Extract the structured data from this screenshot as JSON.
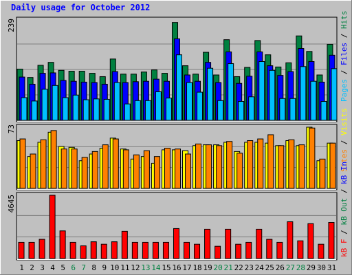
{
  "title": "Daily usage for October 2012",
  "colors": {
    "background": "#c0c0c0",
    "panel": "#c0c0c0",
    "title": "#0000ff",
    "hits": "#008040",
    "files": "#0000ff",
    "pages": "#00c0ff",
    "visits": "#ffff00",
    "sites": "#ff8000",
    "kbin": "#0000ff",
    "kbout": "#008040",
    "kbf": "#ff0000",
    "weekend": "#008040",
    "weekday": "#000000"
  },
  "chart_data": [
    {
      "type": "bar",
      "name": "hits-files-pages",
      "ymax_label": "239",
      "ylim": [
        0,
        239
      ],
      "legend": [
        "Pages",
        "Files",
        "Hits"
      ],
      "categories": [
        "1",
        "2",
        "3",
        "4",
        "5",
        "6",
        "7",
        "8",
        "9",
        "10",
        "11",
        "12",
        "13",
        "14",
        "15",
        "16",
        "17",
        "18",
        "19",
        "20",
        "21",
        "22",
        "23",
        "24",
        "25",
        "26",
        "27",
        "28",
        "29",
        "30",
        "31"
      ],
      "series": [
        {
          "name": "Hits",
          "values": [
            122,
            102,
            131,
            138,
            119,
            117,
            117,
            112,
            104,
            146,
            110,
            110,
            115,
            120,
            112,
            233,
            130,
            110,
            162,
            108,
            192,
            104,
            126,
            190,
            156,
            127,
            137,
            201,
            164,
            108,
            181
          ]
        },
        {
          "name": "Files",
          "values": [
            103,
            86,
            112,
            113,
            95,
            93,
            91,
            90,
            86,
            116,
            90,
            92,
            93,
            98,
            93,
            194,
            108,
            93,
            138,
            90,
            163,
            88,
            105,
            163,
            130,
            107,
            116,
            171,
            140,
            91,
            155
          ]
        },
        {
          "name": "Pages",
          "values": [
            54,
            46,
            74,
            83,
            54,
            60,
            49,
            51,
            50,
            90,
            39,
            47,
            47,
            68,
            53,
            156,
            90,
            67,
            124,
            47,
            135,
            45,
            56,
            140,
            119,
            52,
            52,
            128,
            93,
            45,
            123
          ]
        }
      ]
    },
    {
      "type": "bar",
      "name": "visits-sites",
      "ymax_label": "73",
      "ylim": [
        0,
        73
      ],
      "legend": [
        "Sites",
        "Visits"
      ],
      "categories": [
        "1",
        "2",
        "3",
        "4",
        "5",
        "6",
        "7",
        "8",
        "9",
        "10",
        "11",
        "12",
        "13",
        "14",
        "15",
        "16",
        "17",
        "18",
        "19",
        "20",
        "21",
        "22",
        "23",
        "24",
        "25",
        "26",
        "27",
        "28",
        "29",
        "30",
        "31"
      ],
      "series": [
        {
          "name": "Visits",
          "values": [
            57,
            38,
            55,
            67,
            50,
            49,
            33,
            41,
            48,
            60,
            47,
            35,
            38,
            30,
            46,
            46,
            45,
            51,
            52,
            52,
            55,
            44,
            55,
            55,
            54,
            51,
            57,
            51,
            73,
            33,
            54
          ]
        },
        {
          "name": "Sites",
          "values": [
            59,
            41,
            58,
            69,
            47,
            47,
            37,
            44,
            52,
            59,
            46,
            40,
            45,
            38,
            48,
            47,
            41,
            53,
            52,
            51,
            56,
            42,
            57,
            59,
            64,
            51,
            58,
            52,
            72,
            35,
            54
          ]
        }
      ]
    },
    {
      "type": "bar",
      "name": "kbytes",
      "ymax_label": "4645",
      "ylim": [
        0,
        4645
      ],
      "legend": [
        "kB F",
        "kB Out",
        "kB In"
      ],
      "categories": [
        "1",
        "2",
        "3",
        "4",
        "5",
        "6",
        "7",
        "8",
        "9",
        "10",
        "11",
        "12",
        "13",
        "14",
        "15",
        "16",
        "17",
        "18",
        "19",
        "20",
        "21",
        "22",
        "23",
        "24",
        "25",
        "26",
        "27",
        "28",
        "29",
        "30",
        "31"
      ],
      "series": [
        {
          "name": "kB F",
          "values": [
            1190,
            1190,
            1410,
            4645,
            2030,
            1190,
            930,
            1230,
            1050,
            1230,
            2000,
            1190,
            1190,
            1190,
            1190,
            2200,
            1190,
            1050,
            2150,
            900,
            2150,
            1050,
            1190,
            2150,
            1410,
            1190,
            2700,
            1300,
            2560,
            1050,
            2650
          ]
        }
      ]
    }
  ],
  "days": [
    {
      "label": "1",
      "weekend": false
    },
    {
      "label": "2",
      "weekend": false
    },
    {
      "label": "3",
      "weekend": false
    },
    {
      "label": "4",
      "weekend": false
    },
    {
      "label": "5",
      "weekend": false
    },
    {
      "label": "6",
      "weekend": true
    },
    {
      "label": "7",
      "weekend": true
    },
    {
      "label": "8",
      "weekend": false
    },
    {
      "label": "9",
      "weekend": false
    },
    {
      "label": "10",
      "weekend": false
    },
    {
      "label": "11",
      "weekend": false
    },
    {
      "label": "12",
      "weekend": false
    },
    {
      "label": "13",
      "weekend": true
    },
    {
      "label": "14",
      "weekend": true
    },
    {
      "label": "15",
      "weekend": false
    },
    {
      "label": "16",
      "weekend": false
    },
    {
      "label": "17",
      "weekend": false
    },
    {
      "label": "18",
      "weekend": false
    },
    {
      "label": "19",
      "weekend": false
    },
    {
      "label": "20",
      "weekend": true
    },
    {
      "label": "21",
      "weekend": true
    },
    {
      "label": "22",
      "weekend": false
    },
    {
      "label": "23",
      "weekend": false
    },
    {
      "label": "24",
      "weekend": false
    },
    {
      "label": "25",
      "weekend": false
    },
    {
      "label": "26",
      "weekend": false
    },
    {
      "label": "27",
      "weekend": true
    },
    {
      "label": "28",
      "weekend": true
    },
    {
      "label": "29",
      "weekend": false
    },
    {
      "label": "30",
      "weekend": false
    },
    {
      "label": "31",
      "weekend": false
    }
  ]
}
